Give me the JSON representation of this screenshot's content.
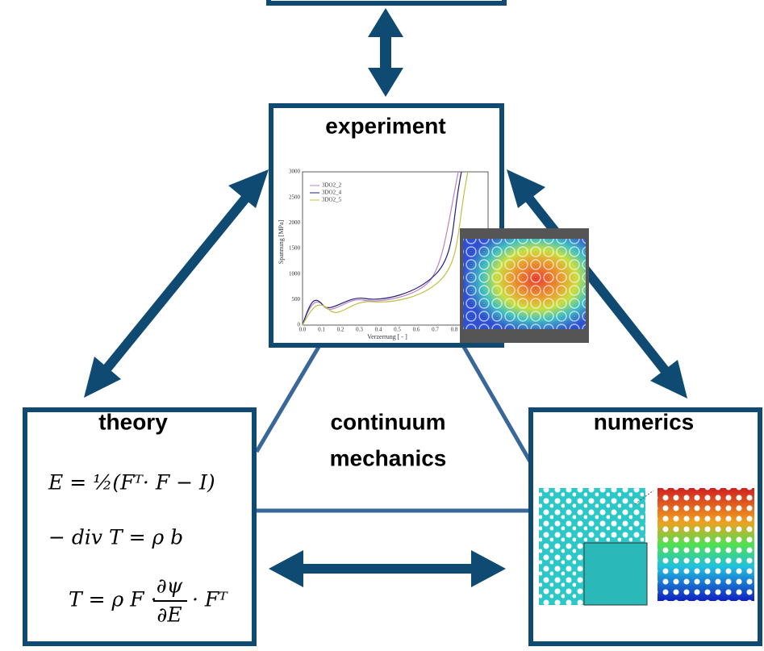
{
  "nodes": [
    {
      "label": "experiment"
    },
    {
      "label": "theory"
    },
    {
      "label": "numerics"
    }
  ],
  "center": {
    "lines": [
      "continuum",
      "mechanics"
    ]
  },
  "plot": {
    "ylabel": "Spannung [MPa]",
    "xlabel": "Verzerrung [ - ]",
    "xticks": [
      "0.0",
      "0.1",
      "0.2",
      "0.3",
      "0.4",
      "0.5",
      "0.6",
      "0.7",
      "0.8"
    ],
    "yticks": [
      "0",
      "500",
      "1000",
      "1500",
      "2000",
      "2500",
      "3000"
    ],
    "legend": [
      "3DO2_2",
      "3DO2_4",
      "3DO2_5"
    ]
  },
  "equations": [
    {
      "parts": [
        "E = ½(Fᵀ· F − I)"
      ]
    },
    {
      "parts": [
        "− div T = ρ b"
      ]
    },
    {
      "parts": [
        "T = ρ F ·",
        "∂ψ",
        "∂E",
        "· Fᵀ"
      ]
    }
  ]
}
